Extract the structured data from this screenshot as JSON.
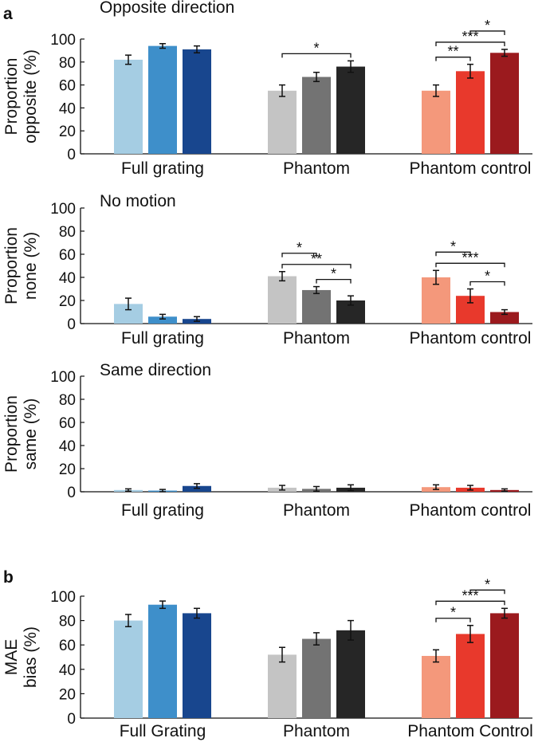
{
  "chart_data": [
    {
      "type": "bar",
      "panel_label": "a",
      "title": "Opposite direction",
      "ylabel_lines": [
        "Proportion",
        "opposite (%)"
      ],
      "ylim": [
        0,
        100
      ],
      "yticks": [
        "0",
        "20",
        "40",
        "60",
        "80",
        "100"
      ],
      "groups": [
        "Full grating",
        "Phantom",
        "Phantom control"
      ],
      "values": [
        [
          82,
          94,
          91
        ],
        [
          55,
          67,
          76
        ],
        [
          55,
          72,
          88
        ]
      ],
      "errors": [
        [
          4,
          2,
          3
        ],
        [
          5,
          4,
          5
        ],
        [
          5,
          6,
          3
        ]
      ],
      "significance": [
        {
          "group": 1,
          "from": 0,
          "to": 2,
          "label": "*"
        },
        {
          "group": 2,
          "from": 0,
          "to": 2,
          "label": "***"
        },
        {
          "group": 2,
          "from": 0,
          "to": 1,
          "label": "**"
        },
        {
          "group": 2,
          "from": 1,
          "to": 2,
          "label": "*"
        }
      ]
    },
    {
      "type": "bar",
      "panel_label": "",
      "title": "No motion",
      "ylabel_lines": [
        "Proportion",
        "none (%)"
      ],
      "ylim": [
        0,
        100
      ],
      "yticks": [
        "0",
        "20",
        "40",
        "60",
        "80",
        "100"
      ],
      "groups": [
        "Full grating",
        "Phantom",
        "Phantom control"
      ],
      "values": [
        [
          17,
          6,
          4
        ],
        [
          41,
          29,
          20
        ],
        [
          40,
          24,
          10
        ]
      ],
      "errors": [
        [
          5,
          2,
          2
        ],
        [
          4,
          3,
          4
        ],
        [
          6,
          6,
          2
        ]
      ],
      "significance": [
        {
          "group": 1,
          "from": 0,
          "to": 2,
          "label": "**"
        },
        {
          "group": 1,
          "from": 1,
          "to": 2,
          "label": "*"
        },
        {
          "group": 1,
          "from": 0,
          "to": 1,
          "label": "*"
        },
        {
          "group": 2,
          "from": 0,
          "to": 2,
          "label": "***"
        },
        {
          "group": 2,
          "from": 0,
          "to": 1,
          "label": "*"
        },
        {
          "group": 2,
          "from": 1,
          "to": 2,
          "label": "*"
        }
      ]
    },
    {
      "type": "bar",
      "panel_label": "",
      "title": "Same direction",
      "ylabel_lines": [
        "Proportion",
        "same (%)"
      ],
      "ylim": [
        0,
        100
      ],
      "yticks": [
        "0",
        "20",
        "40",
        "60",
        "80",
        "100"
      ],
      "groups": [
        "Full grating",
        "Phantom",
        "Phantom control"
      ],
      "values": [
        [
          1.5,
          1,
          5
        ],
        [
          3.5,
          2.5,
          3.5
        ],
        [
          4,
          3.5,
          1.5
        ]
      ],
      "errors": [
        [
          1,
          1,
          2
        ],
        [
          2,
          2,
          2.5
        ],
        [
          2,
          2,
          1
        ]
      ],
      "significance": []
    },
    {
      "type": "bar",
      "panel_label": "b",
      "title": "",
      "ylabel_lines": [
        "MAE",
        "bias (%)"
      ],
      "ylim": [
        0,
        100
      ],
      "yticks": [
        "0",
        "20",
        "40",
        "60",
        "80",
        "100"
      ],
      "groups": [
        "Full Grating",
        "Phantom",
        "Phantom Control"
      ],
      "values": [
        [
          80,
          93,
          86
        ],
        [
          52,
          65,
          72
        ],
        [
          51,
          69,
          86
        ]
      ],
      "errors": [
        [
          5,
          3,
          4
        ],
        [
          6,
          5,
          8
        ],
        [
          5,
          7,
          4
        ]
      ],
      "significance": [
        {
          "group": 2,
          "from": 0,
          "to": 2,
          "label": "***"
        },
        {
          "group": 2,
          "from": 0,
          "to": 1,
          "label": "*"
        },
        {
          "group": 2,
          "from": 1,
          "to": 2,
          "label": "*"
        }
      ]
    }
  ],
  "colors": [
    [
      "#a5cde3",
      "#3e8fca",
      "#18468e"
    ],
    [
      "#c4c4c4",
      "#737373",
      "#262626"
    ],
    [
      "#f4987b",
      "#e8392c",
      "#9b1a1e"
    ]
  ]
}
